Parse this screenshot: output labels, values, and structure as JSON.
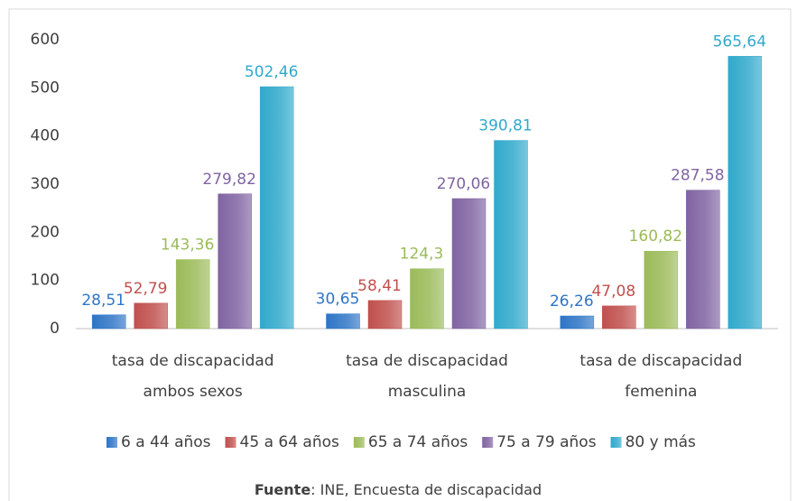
{
  "chart_data": {
    "type": "bar",
    "categories": [
      "tasa de discapacidad\nambos sexos",
      "tasa de discapacidad\nmasculina",
      "tasa de discapacidad\nfemenina"
    ],
    "series": [
      {
        "name": "6 a 44 años",
        "color": "#2e75c6",
        "values": [
          28.51,
          30.65,
          26.26
        ],
        "value_labels": [
          "28,51",
          "30,65",
          "26,26"
        ]
      },
      {
        "name": "45 a 64 años",
        "color": "#c0504d",
        "values": [
          52.79,
          58.41,
          47.08
        ],
        "value_labels": [
          "52,79",
          "58,41",
          "47,08"
        ]
      },
      {
        "name": "65 a 74 años",
        "color": "#9bbb59",
        "values": [
          143.36,
          124.3,
          160.82
        ],
        "value_labels": [
          "143,36",
          "124,3",
          "160,82"
        ]
      },
      {
        "name": "75 a 79 años",
        "color": "#8064a2",
        "values": [
          279.82,
          270.06,
          287.58
        ],
        "value_labels": [
          "279,82",
          "270,06",
          "287,58"
        ]
      },
      {
        "name": "80 y más",
        "color": "#31a9cc",
        "values": [
          502.46,
          390.81,
          565.64
        ],
        "value_labels": [
          "502,46",
          "390,81",
          "565,64"
        ]
      }
    ],
    "ylim": [
      0,
      600
    ],
    "yticks": [
      0,
      100,
      200,
      300,
      400,
      500,
      600
    ],
    "grid": false,
    "legend": "bottom",
    "source_label": "Fuente",
    "source": ": INE, Encuesta de discapacidad"
  }
}
